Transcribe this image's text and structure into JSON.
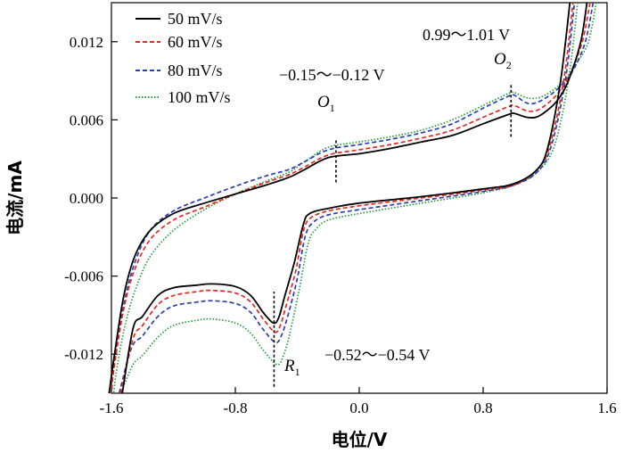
{
  "chart_data": {
    "type": "line",
    "xlabel": "电位/V",
    "ylabel": "电流/mA",
    "xlim": [
      -1.6,
      1.6
    ],
    "ylim": [
      -0.015,
      0.015
    ],
    "x_ticks": [
      "-1.6",
      "-0.8",
      "0.0",
      "0.8",
      "1.6"
    ],
    "y_ticks": [
      "0.012",
      "0.006",
      "0.000",
      "-0.006",
      "-0.012"
    ],
    "legend_position": "top-left",
    "series": [
      {
        "name": "50 mV/s",
        "color": "#000000",
        "dash": "solid",
        "forward": [
          [
            -1.53,
            -0.015
          ],
          [
            -1.46,
            -0.01
          ],
          [
            -1.4,
            -0.0091
          ],
          [
            -1.3,
            -0.0075
          ],
          [
            -1.2,
            -0.0069
          ],
          [
            -1.05,
            -0.0067
          ],
          [
            -0.95,
            -0.0066
          ],
          [
            -0.8,
            -0.0068
          ],
          [
            -0.7,
            -0.0075
          ],
          [
            -0.62,
            -0.0088
          ],
          [
            -0.555,
            -0.0096
          ],
          [
            -0.52,
            -0.0092
          ],
          [
            -0.48,
            -0.0075
          ],
          [
            -0.42,
            -0.005
          ],
          [
            -0.36,
            -0.002
          ],
          [
            -0.32,
            -0.0012
          ],
          [
            -0.2,
            -0.0008
          ],
          [
            0.0,
            -0.0004
          ],
          [
            0.4,
            0.0001
          ],
          [
            0.8,
            0.0007
          ],
          [
            1.0,
            0.0011
          ],
          [
            1.15,
            0.0022
          ],
          [
            1.22,
            0.004
          ],
          [
            1.3,
            0.009
          ],
          [
            1.36,
            0.015
          ]
        ],
        "reverse": [
          [
            1.47,
            0.015
          ],
          [
            1.43,
            0.012
          ],
          [
            1.35,
            0.009
          ],
          [
            1.28,
            0.0075
          ],
          [
            1.2,
            0.0066
          ],
          [
            1.14,
            0.0062
          ],
          [
            1.08,
            0.0062
          ],
          [
            1.0,
            0.0065
          ],
          [
            0.96,
            0.0064
          ],
          [
            0.8,
            0.0057
          ],
          [
            0.6,
            0.0048
          ],
          [
            0.4,
            0.0043
          ],
          [
            0.2,
            0.0038
          ],
          [
            0.0,
            0.0034
          ],
          [
            -0.2,
            0.0031
          ],
          [
            -0.35,
            0.0022
          ],
          [
            -0.45,
            0.0016
          ],
          [
            -0.6,
            0.001
          ],
          [
            -0.8,
            0.0003
          ],
          [
            -1.0,
            -0.0004
          ],
          [
            -1.2,
            -0.0012
          ],
          [
            -1.35,
            -0.0025
          ],
          [
            -1.45,
            -0.0045
          ],
          [
            -1.52,
            -0.0075
          ],
          [
            -1.58,
            -0.012
          ],
          [
            -1.615,
            -0.015
          ]
        ]
      },
      {
        "name": "60 mV/s",
        "color": "#e8281e",
        "dash": "5,3",
        "forward": [
          [
            -1.54,
            -0.015
          ],
          [
            -1.46,
            -0.0108
          ],
          [
            -1.4,
            -0.0098
          ],
          [
            -1.3,
            -0.0082
          ],
          [
            -1.2,
            -0.0075
          ],
          [
            -1.05,
            -0.0072
          ],
          [
            -0.95,
            -0.0071
          ],
          [
            -0.8,
            -0.0073
          ],
          [
            -0.7,
            -0.008
          ],
          [
            -0.62,
            -0.0093
          ],
          [
            -0.545,
            -0.0103
          ],
          [
            -0.51,
            -0.0098
          ],
          [
            -0.47,
            -0.0082
          ],
          [
            -0.41,
            -0.0056
          ],
          [
            -0.36,
            -0.0025
          ],
          [
            -0.31,
            -0.0015
          ],
          [
            -0.2,
            -0.001
          ],
          [
            0.0,
            -0.0006
          ],
          [
            0.4,
            0.0
          ],
          [
            0.8,
            0.0006
          ],
          [
            1.0,
            0.001
          ],
          [
            1.15,
            0.0022
          ],
          [
            1.23,
            0.004
          ],
          [
            1.32,
            0.009
          ],
          [
            1.38,
            0.015
          ]
        ],
        "reverse": [
          [
            1.49,
            0.015
          ],
          [
            1.44,
            0.012
          ],
          [
            1.36,
            0.0095
          ],
          [
            1.28,
            0.008
          ],
          [
            1.2,
            0.0071
          ],
          [
            1.14,
            0.0067
          ],
          [
            1.08,
            0.0067
          ],
          [
            1.0,
            0.0071
          ],
          [
            0.96,
            0.007
          ],
          [
            0.8,
            0.0062
          ],
          [
            0.6,
            0.0052
          ],
          [
            0.4,
            0.0046
          ],
          [
            0.2,
            0.0041
          ],
          [
            0.0,
            0.0037
          ],
          [
            -0.2,
            0.0033
          ],
          [
            -0.35,
            0.0024
          ],
          [
            -0.45,
            0.0018
          ],
          [
            -0.6,
            0.0012
          ],
          [
            -0.8,
            0.0003
          ],
          [
            -1.0,
            -0.0007
          ],
          [
            -1.2,
            -0.0017
          ],
          [
            -1.35,
            -0.0032
          ],
          [
            -1.45,
            -0.0055
          ],
          [
            -1.52,
            -0.0085
          ],
          [
            -1.58,
            -0.0128
          ],
          [
            -1.605,
            -0.015
          ]
        ]
      },
      {
        "name": "80 mV/s",
        "color": "#2a3eb5",
        "dash": "5,3",
        "forward": [
          [
            -1.55,
            -0.015
          ],
          [
            -1.47,
            -0.0115
          ],
          [
            -1.4,
            -0.0106
          ],
          [
            -1.3,
            -0.0091
          ],
          [
            -1.2,
            -0.0083
          ],
          [
            -1.05,
            -0.008
          ],
          [
            -0.95,
            -0.0079
          ],
          [
            -0.8,
            -0.0081
          ],
          [
            -0.7,
            -0.0088
          ],
          [
            -0.62,
            -0.0101
          ],
          [
            -0.54,
            -0.0111
          ],
          [
            -0.5,
            -0.0105
          ],
          [
            -0.46,
            -0.009
          ],
          [
            -0.4,
            -0.0062
          ],
          [
            -0.35,
            -0.003
          ],
          [
            -0.3,
            -0.0019
          ],
          [
            -0.2,
            -0.0013
          ],
          [
            0.0,
            -0.0009
          ],
          [
            0.4,
            -0.0002
          ],
          [
            0.8,
            0.0005
          ],
          [
            1.0,
            0.001
          ],
          [
            1.15,
            0.002
          ],
          [
            1.24,
            0.004
          ],
          [
            1.33,
            0.009
          ],
          [
            1.39,
            0.015
          ]
        ],
        "reverse": [
          [
            1.51,
            0.015
          ],
          [
            1.46,
            0.012
          ],
          [
            1.38,
            0.0098
          ],
          [
            1.3,
            0.0086
          ],
          [
            1.22,
            0.0078
          ],
          [
            1.14,
            0.0073
          ],
          [
            1.08,
            0.0073
          ],
          [
            1.0,
            0.0079
          ],
          [
            0.96,
            0.0078
          ],
          [
            0.8,
            0.0069
          ],
          [
            0.6,
            0.0057
          ],
          [
            0.4,
            0.005
          ],
          [
            0.2,
            0.0045
          ],
          [
            0.0,
            0.0041
          ],
          [
            -0.2,
            0.0037
          ],
          [
            -0.35,
            0.0028
          ],
          [
            -0.45,
            0.0022
          ],
          [
            -0.6,
            0.0017
          ],
          [
            -0.8,
            0.0009
          ],
          [
            -1.0,
            0.0
          ],
          [
            -1.2,
            -0.001
          ],
          [
            -1.35,
            -0.0025
          ],
          [
            -1.45,
            -0.005
          ],
          [
            -1.52,
            -0.0082
          ],
          [
            -1.58,
            -0.0125
          ],
          [
            -1.6,
            -0.015
          ]
        ]
      },
      {
        "name": "100 mV/s",
        "color": "#21a03a",
        "dash": "1.5,2",
        "forward": [
          [
            -1.54,
            -0.015
          ],
          [
            -1.46,
            -0.0128
          ],
          [
            -1.4,
            -0.0121
          ],
          [
            -1.3,
            -0.0107
          ],
          [
            -1.2,
            -0.0098
          ],
          [
            -1.05,
            -0.0094
          ],
          [
            -0.95,
            -0.0093
          ],
          [
            -0.8,
            -0.0096
          ],
          [
            -0.7,
            -0.0104
          ],
          [
            -0.62,
            -0.0117
          ],
          [
            -0.53,
            -0.0128
          ],
          [
            -0.49,
            -0.0121
          ],
          [
            -0.45,
            -0.0105
          ],
          [
            -0.39,
            -0.0072
          ],
          [
            -0.33,
            -0.0035
          ],
          [
            -0.28,
            -0.0024
          ],
          [
            -0.2,
            -0.0017
          ],
          [
            0.0,
            -0.0012
          ],
          [
            0.4,
            -0.0004
          ],
          [
            0.8,
            0.0004
          ],
          [
            1.0,
            0.001
          ],
          [
            1.15,
            0.002
          ],
          [
            1.26,
            0.004
          ],
          [
            1.35,
            0.009
          ],
          [
            1.41,
            0.015
          ]
        ],
        "reverse": [
          [
            1.53,
            0.015
          ],
          [
            1.48,
            0.012
          ],
          [
            1.4,
            0.0103
          ],
          [
            1.32,
            0.009
          ],
          [
            1.24,
            0.0082
          ],
          [
            1.16,
            0.0077
          ],
          [
            1.08,
            0.0077
          ],
          [
            1.0,
            0.0081
          ],
          [
            0.96,
            0.008
          ],
          [
            0.8,
            0.0071
          ],
          [
            0.6,
            0.006
          ],
          [
            0.4,
            0.0052
          ],
          [
            0.2,
            0.0047
          ],
          [
            0.0,
            0.0043
          ],
          [
            -0.2,
            0.0039
          ],
          [
            -0.35,
            0.0028
          ],
          [
            -0.45,
            0.002
          ],
          [
            -0.6,
            0.0013
          ],
          [
            -0.8,
            0.0003
          ],
          [
            -1.0,
            -0.0009
          ],
          [
            -1.2,
            -0.0025
          ],
          [
            -1.35,
            -0.0045
          ],
          [
            -1.45,
            -0.0072
          ],
          [
            -1.52,
            -0.0102
          ],
          [
            -1.57,
            -0.0135
          ],
          [
            -1.585,
            -0.015
          ]
        ]
      }
    ],
    "annotations": [
      {
        "id": "O1",
        "letter": "O",
        "sub": "1",
        "x": -0.15,
        "range_text": "−0.15～−0.12 V",
        "marker_y": [
          0.0012,
          0.0045
        ]
      },
      {
        "id": "O2",
        "letter": "O",
        "sub": "2",
        "x": 0.98,
        "range_text": "0.99～1.01 V",
        "marker_y": [
          0.0047,
          0.0087
        ]
      },
      {
        "id": "R1",
        "letter": "R",
        "sub": "1",
        "x": -0.55,
        "range_text": "−0.52～−0.54 V",
        "marker_y": [
          -0.0145,
          -0.0072
        ]
      }
    ]
  }
}
